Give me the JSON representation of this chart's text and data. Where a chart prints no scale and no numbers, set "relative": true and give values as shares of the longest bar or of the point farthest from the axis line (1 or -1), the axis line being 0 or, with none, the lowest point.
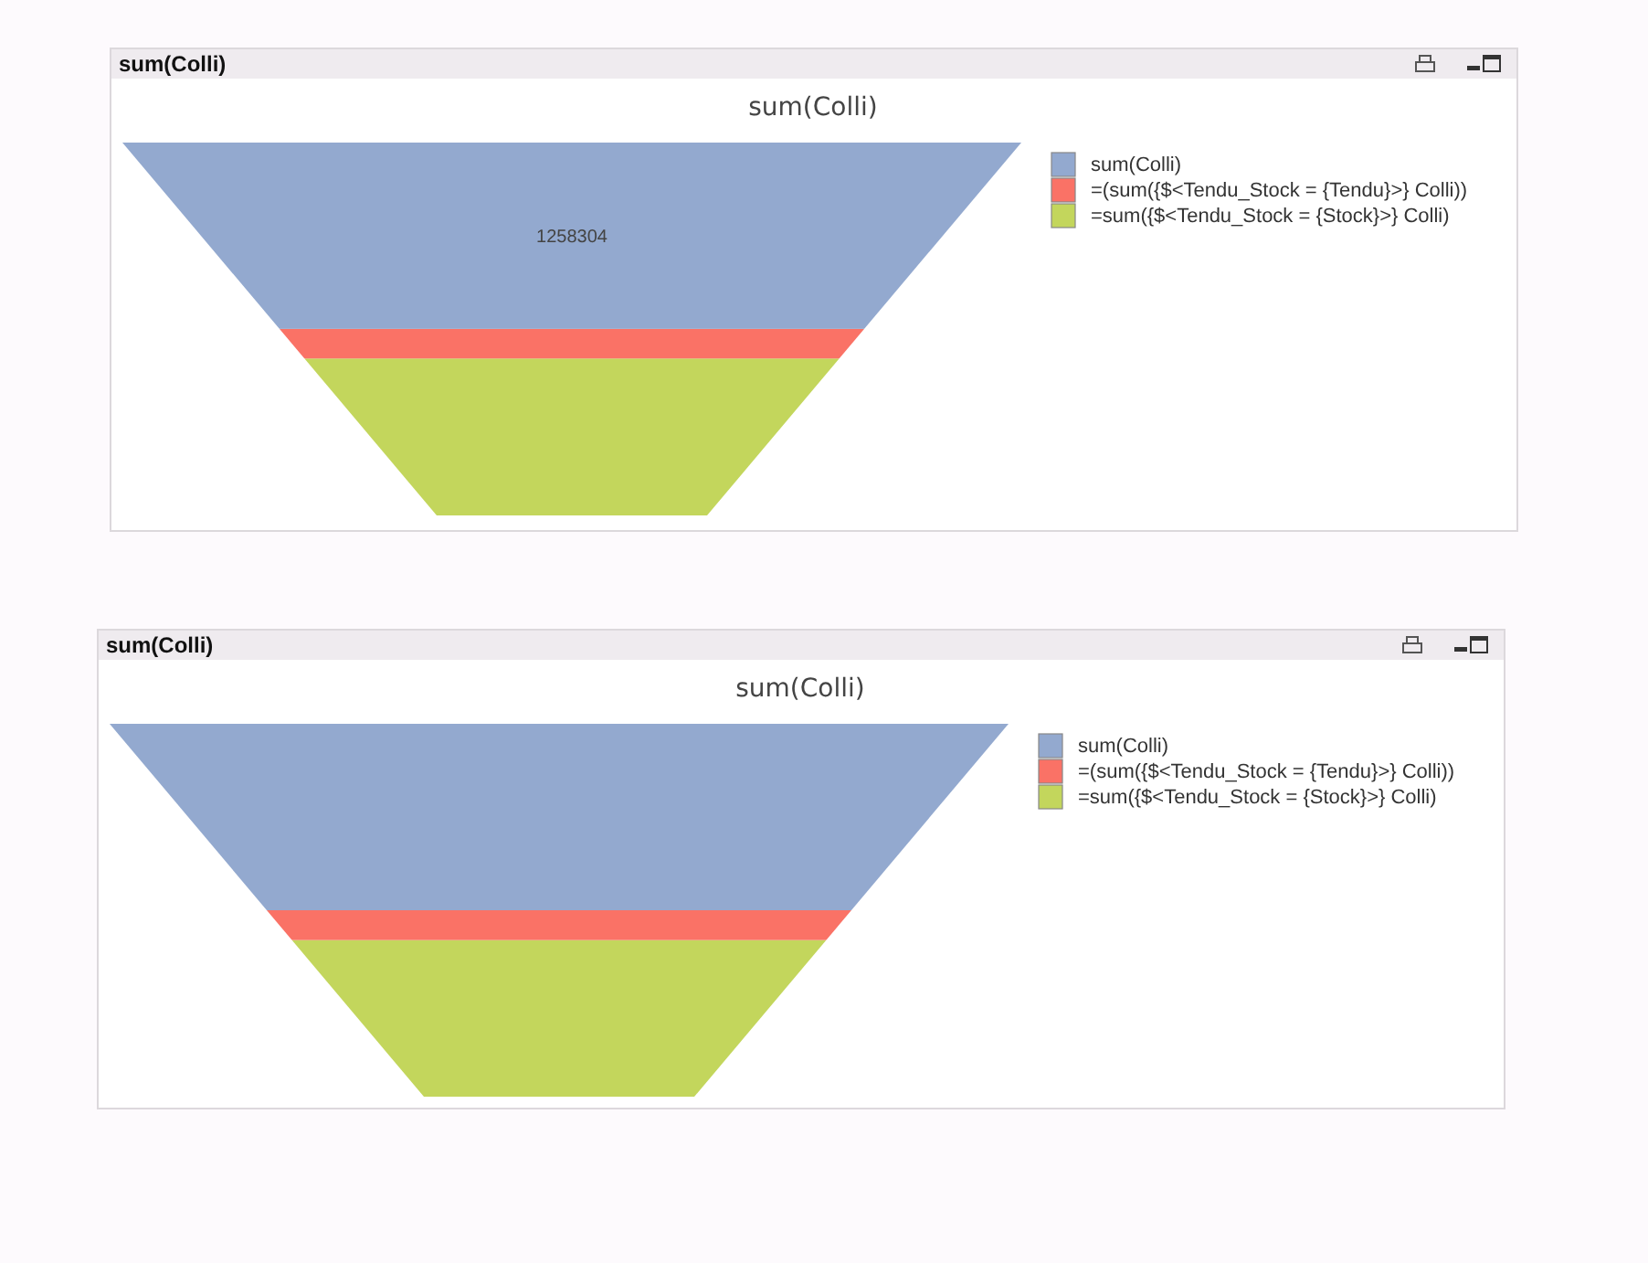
{
  "chart_data": [
    {
      "type": "bar",
      "stacked": true,
      "title": "sum(Colli)",
      "subtitle": "sum(Colli)",
      "categories": [
        null
      ],
      "legend": "top right",
      "series": [
        {
          "name": "=sum({$<Tendu_Stock = {Stock}>} Colli)",
          "color": "#c3d65c",
          "values": [
            1060000
          ],
          "value_labels": [
            null
          ]
        },
        {
          "name": "=(sum({$<Tendu_Stock = {Tendu}>} Colli))",
          "color": "#fa7266",
          "values": [
            200000
          ],
          "value_labels": [
            null
          ]
        },
        {
          "name": "sum(Colli)",
          "color": "#93a9cf",
          "values": [
            1258304
          ],
          "value_labels": [
            "1258304"
          ]
        }
      ]
    },
    {
      "type": "bar",
      "stacked": true,
      "relative": true,
      "title": "sum(Colli)",
      "subtitle": "sum(Colli)",
      "categories": [
        null
      ],
      "legend": "top right",
      "series": [
        {
          "name": "=sum({$<Tendu_Stock = {Stock}>} Colli)",
          "color": "#c3d65c",
          "values": [
            0.42
          ]
        },
        {
          "name": "=(sum({$<Tendu_Stock = {Tendu}>} Colli))",
          "color": "#fa7266",
          "values": [
            0.08
          ]
        },
        {
          "name": "sum(Colli)",
          "color": "#93a9cf",
          "values": [
            0.5
          ]
        }
      ]
    }
  ]
}
